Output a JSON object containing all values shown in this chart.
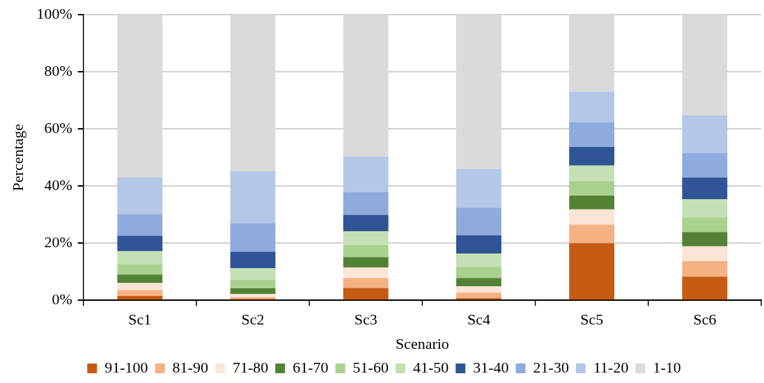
{
  "chart_data": {
    "type": "bar",
    "stacked": true,
    "xlabel": "Scenario",
    "ylabel": "Percentage",
    "categories": [
      "Sc1",
      "Sc2",
      "Sc3",
      "Sc4",
      "Sc5",
      "Sc6"
    ],
    "ylim": [
      0,
      100
    ],
    "yticks": [
      {
        "value": 0,
        "label": "0%"
      },
      {
        "value": 20,
        "label": "20%"
      },
      {
        "value": 40,
        "label": "40%"
      },
      {
        "value": 60,
        "label": "60%"
      },
      {
        "value": 80,
        "label": "80%"
      },
      {
        "value": 100,
        "label": "100%"
      }
    ],
    "grid": "y",
    "legend": "bottom",
    "series": [
      {
        "name": "91-100",
        "color": "#c55a11",
        "values": [
          1.5,
          0.5,
          4.3,
          0.7,
          20.0,
          8.3
        ]
      },
      {
        "name": "81-90",
        "color": "#f4b183",
        "values": [
          2.1,
          0.6,
          3.5,
          2.0,
          6.5,
          5.4
        ]
      },
      {
        "name": "71-80",
        "color": "#fbe5d6",
        "values": [
          2.4,
          1.1,
          3.7,
          2.2,
          5.3,
          5.2
        ]
      },
      {
        "name": "61-70",
        "color": "#548235",
        "values": [
          3.0,
          2.0,
          3.6,
          2.9,
          4.9,
          5.0
        ]
      },
      {
        "name": "51-60",
        "color": "#a9d18e",
        "values": [
          3.7,
          2.9,
          4.2,
          3.9,
          5.1,
          5.1
        ]
      },
      {
        "name": "41-50",
        "color": "#c5e0b4",
        "values": [
          4.5,
          4.1,
          4.9,
          4.7,
          5.4,
          6.4
        ]
      },
      {
        "name": "31-40",
        "color": "#2f5597",
        "values": [
          5.4,
          5.8,
          5.7,
          6.4,
          6.5,
          7.6
        ]
      },
      {
        "name": "21-30",
        "color": "#8faadc",
        "values": [
          7.6,
          10.0,
          8.0,
          9.6,
          8.7,
          8.5
        ]
      },
      {
        "name": "11-20",
        "color": "#b4c7e7",
        "values": [
          12.8,
          18.2,
          12.4,
          13.5,
          10.7,
          13.2
        ]
      },
      {
        "name": "1-10",
        "color": "#dadada",
        "values": [
          57.0,
          54.8,
          49.7,
          54.1,
          26.9,
          35.3
        ]
      }
    ]
  }
}
